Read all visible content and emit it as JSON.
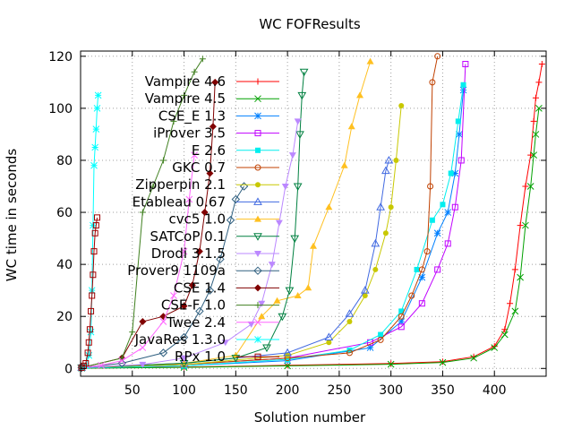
{
  "chart_data": {
    "type": "line",
    "title": "WC FOFResults",
    "xlabel": "Solution number",
    "ylabel": "WC time in seconds",
    "xlim": [
      0,
      450
    ],
    "ylim": [
      -3,
      122
    ],
    "xticks": [
      50,
      100,
      150,
      200,
      250,
      300,
      350,
      400
    ],
    "yticks": [
      0,
      20,
      40,
      60,
      80,
      100,
      120
    ],
    "grid": true,
    "legend_position": "top-left",
    "series": [
      {
        "name": "Vampire 4.6",
        "color": "#ff0000",
        "marker": "plus",
        "x": [
          1,
          100,
          200,
          300,
          350,
          380,
          400,
          410,
          415,
          420,
          425,
          430,
          435,
          438,
          440,
          443,
          446
        ],
        "y": [
          0.1,
          0.5,
          1.2,
          1.9,
          2.6,
          4.5,
          8.5,
          15,
          25,
          38,
          55,
          70,
          82,
          95,
          104,
          110,
          117
        ]
      },
      {
        "name": "Vampire 4.5",
        "color": "#00a000",
        "marker": "x",
        "x": [
          1,
          100,
          200,
          300,
          350,
          380,
          400,
          410,
          420,
          425,
          430,
          435,
          438,
          440,
          443
        ],
        "y": [
          0.1,
          0.4,
          1.0,
          1.6,
          2.3,
          4,
          8,
          13,
          22,
          35,
          55,
          70,
          82,
          90,
          100
        ]
      },
      {
        "name": "CSE_E 1.3",
        "color": "#0080ff",
        "marker": "star",
        "x": [
          1,
          100,
          200,
          280,
          310,
          330,
          345,
          355,
          362,
          366,
          370
        ],
        "y": [
          0.2,
          1,
          3,
          8,
          18,
          35,
          52,
          60,
          75,
          90,
          107
        ]
      },
      {
        "name": "iProver 3.5",
        "color": "#c000ff",
        "marker": "box",
        "x": [
          1,
          100,
          200,
          280,
          310,
          330,
          345,
          355,
          362,
          368,
          372
        ],
        "y": [
          0.3,
          1.5,
          4,
          10,
          16,
          25,
          38,
          48,
          62,
          80,
          117
        ]
      },
      {
        "name": "E 2.6",
        "color": "#00eeee",
        "marker": "fullbox",
        "x": [
          1,
          100,
          200,
          260,
          290,
          310,
          325,
          340,
          350,
          358,
          365,
          370
        ],
        "y": [
          0.2,
          1,
          3.5,
          7,
          13,
          22,
          38,
          57,
          63,
          75,
          95,
          109
        ]
      },
      {
        "name": "GKC 0.7",
        "color": "#c04000",
        "marker": "circle",
        "x": [
          1,
          100,
          200,
          260,
          290,
          310,
          320,
          330,
          335,
          338,
          340,
          345
        ],
        "y": [
          0.3,
          1.5,
          4,
          6,
          11,
          20,
          28,
          38,
          45,
          70,
          110,
          120
        ]
      },
      {
        "name": "Zipperpin 2.1",
        "color": "#c8c800",
        "marker": "fullcircle",
        "x": [
          1,
          100,
          200,
          240,
          260,
          275,
          285,
          295,
          300,
          305,
          310
        ],
        "y": [
          0.3,
          1.5,
          5,
          10,
          18,
          28,
          38,
          52,
          62,
          80,
          101
        ]
      },
      {
        "name": "Etableau 0.67",
        "color": "#4169e1",
        "marker": "triangle",
        "x": [
          1,
          100,
          200,
          240,
          260,
          275,
          285,
          290,
          295,
          298
        ],
        "y": [
          0.3,
          2,
          6,
          12,
          21,
          30,
          48,
          62,
          76,
          80
        ]
      },
      {
        "name": "cvc5 1.0",
        "color": "#ffc020",
        "marker": "fulltriangle",
        "x": [
          1,
          100,
          150,
          175,
          190,
          210,
          220,
          225,
          240,
          255,
          262,
          270,
          280
        ],
        "y": [
          0.3,
          2,
          5,
          20,
          26,
          28,
          31,
          47,
          62,
          78,
          93,
          105,
          118
        ]
      },
      {
        "name": "SATCoP 0.1",
        "color": "#008040",
        "marker": "invtriangle",
        "x": [
          1,
          100,
          150,
          180,
          195,
          202,
          207,
          210,
          212,
          214,
          216
        ],
        "y": [
          0.3,
          2,
          4,
          8,
          20,
          30,
          50,
          70,
          90,
          105,
          114
        ]
      },
      {
        "name": "Drodi 3.1.5",
        "color": "#bb88ff",
        "marker": "fullinvtriangle",
        "x": [
          1,
          60,
          100,
          140,
          165,
          175,
          185,
          192,
          198,
          205,
          210
        ],
        "y": [
          0.3,
          1.5,
          4,
          10,
          17,
          25,
          40,
          56,
          70,
          82,
          95
        ]
      },
      {
        "name": "Prover9 1109a",
        "color": "#306080",
        "marker": "diamond",
        "x": [
          1,
          40,
          80,
          100,
          115,
          125,
          135,
          145,
          150,
          158
        ],
        "y": [
          0.3,
          2,
          6,
          12,
          22,
          30,
          42,
          57,
          65,
          70
        ]
      },
      {
        "name": "CSE 1.4",
        "color": "#800000",
        "marker": "fulldiamond",
        "x": [
          1,
          40,
          60,
          80,
          100,
          108,
          115,
          120,
          125,
          128,
          130
        ],
        "y": [
          0.3,
          4,
          18,
          20,
          24,
          32,
          45,
          60,
          75,
          93,
          110
        ]
      },
      {
        "name": "CSE-F 1.0",
        "color": "#408020",
        "marker": "plus",
        "x": [
          1,
          40,
          50,
          60,
          70,
          80,
          90,
          100,
          110,
          118
        ],
        "y": [
          0.3,
          4,
          14,
          60,
          70,
          80,
          95,
          105,
          114,
          119
        ]
      },
      {
        "name": "Twee 2.4",
        "color": "#ff66ff",
        "marker": "x",
        "x": [
          1,
          20,
          40,
          60,
          80,
          90,
          100,
          105,
          110
        ],
        "y": [
          0.3,
          1.2,
          3,
          8,
          18,
          28,
          45,
          65,
          82
        ]
      },
      {
        "name": "JavaRes 1.3.0",
        "color": "#00ffff",
        "marker": "star",
        "x": [
          1,
          5,
          8,
          10,
          11,
          12,
          13,
          14,
          15,
          16,
          17
        ],
        "y": [
          0.3,
          1,
          5,
          14,
          30,
          55,
          78,
          85,
          92,
          100,
          105
        ]
      },
      {
        "name": "RPx 1.0",
        "color": "#a00000",
        "marker": "box",
        "x": [
          1,
          3,
          5,
          7,
          8,
          9,
          10,
          11,
          12,
          13,
          14,
          15,
          16
        ],
        "y": [
          0.3,
          1,
          2,
          6,
          10,
          15,
          22,
          28,
          36,
          45,
          52,
          55,
          58
        ]
      }
    ]
  }
}
